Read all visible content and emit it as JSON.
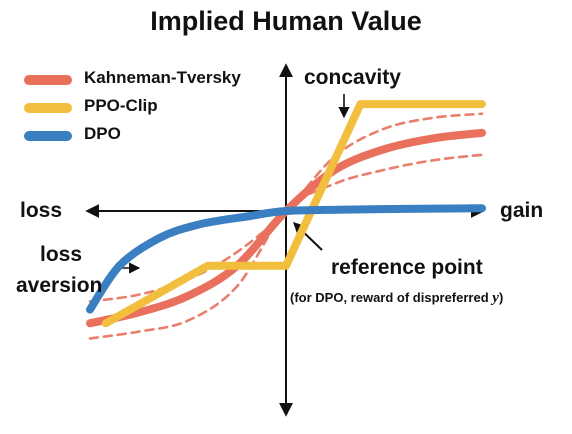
{
  "title": "Implied Human Value",
  "legend": [
    {
      "label": "Kahneman-Tversky",
      "color": "#E8705C"
    },
    {
      "label": "PPO-Clip",
      "color": "#F2BE3E"
    },
    {
      "label": "DPO",
      "color": "#3A7FC1"
    }
  ],
  "annotations": {
    "concavity": "concavity",
    "loss": "loss",
    "gain": "gain",
    "loss_aversion_1": "loss",
    "loss_aversion_2": "aversion",
    "reference_point": "reference point",
    "reference_note": "(for DPO, reward of dispreferred",
    "reference_note_var": "y",
    "reference_note_end": ")"
  },
  "chart_data": {
    "type": "line",
    "title": "Implied Human Value",
    "xlabel_left": "loss",
    "xlabel_right": "gain",
    "x_range": [
      -1,
      1
    ],
    "y_range": [
      -1,
      1
    ],
    "grid": false,
    "legend_position": "top-left",
    "series": [
      {
        "name": "Kahneman-Tversky",
        "style": "solid",
        "x": [
          -1,
          -0.75,
          -0.5,
          -0.25,
          0,
          0.25,
          0.5,
          0.75,
          1
        ],
        "y": [
          -0.82,
          -0.74,
          -0.62,
          -0.4,
          0,
          0.3,
          0.45,
          0.53,
          0.57
        ]
      },
      {
        "name": "Kahneman-Tversky",
        "style": "dashed",
        "x": [
          -1,
          -0.75,
          -0.5,
          -0.25,
          0,
          0.25,
          0.5,
          0.75,
          1
        ],
        "y": [
          -0.66,
          -0.61,
          -0.5,
          -0.3,
          0,
          0.4,
          0.6,
          0.68,
          0.71
        ]
      },
      {
        "name": "Kahneman-Tversky",
        "style": "dashed",
        "x": [
          -1,
          -0.75,
          -0.5,
          -0.25,
          0,
          0.25,
          0.5,
          0.75,
          1
        ],
        "y": [
          -0.93,
          -0.88,
          -0.8,
          -0.55,
          0,
          0.2,
          0.3,
          0.37,
          0.41
        ]
      },
      {
        "name": "PPO-Clip",
        "style": "solid",
        "x": [
          -0.92,
          -0.4,
          0,
          0.38,
          1
        ],
        "y": [
          -0.82,
          -0.4,
          -0.4,
          0.78,
          0.78
        ]
      },
      {
        "name": "DPO",
        "style": "solid",
        "x": [
          -1,
          -0.85,
          -0.65,
          -0.45,
          -0.2,
          0,
          0.3,
          0.6,
          1
        ],
        "y": [
          -0.72,
          -0.4,
          -0.2,
          -0.1,
          -0.04,
          0,
          0.01,
          0.015,
          0.02
        ]
      }
    ]
  }
}
